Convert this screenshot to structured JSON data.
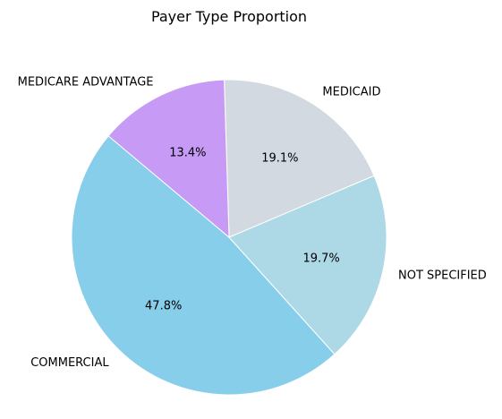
{
  "chart_data": {
    "type": "pie",
    "title": "Payer Type Proportion",
    "start_angle_deg": 140,
    "direction": "counterclockwise",
    "slices": [
      {
        "label": "COMMERCIAL",
        "percent": 47.8,
        "percent_label": "47.8%",
        "color": "#87CEEB"
      },
      {
        "label": "NOT SPECIFIED",
        "percent": 19.7,
        "percent_label": "19.7%",
        "color": "#ADD8E6"
      },
      {
        "label": "MEDICAID",
        "percent": 19.1,
        "percent_label": "19.1%",
        "color": "#D3D9E1"
      },
      {
        "label": "MEDICARE ADVANTAGE",
        "percent": 13.4,
        "percent_label": "13.4%",
        "color": "#C69AF5"
      }
    ]
  }
}
